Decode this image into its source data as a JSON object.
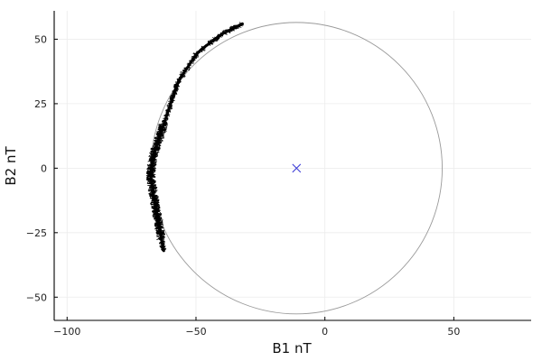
{
  "chart_data": {
    "type": "scatter",
    "title": "",
    "xlabel": "B1 nT",
    "ylabel": "B2 nT",
    "xlim": [
      -105,
      80
    ],
    "ylim": [
      -59,
      61
    ],
    "xticks": [
      -100,
      -50,
      0,
      50
    ],
    "yticks": [
      -50,
      -25,
      0,
      25,
      50
    ],
    "xtick_labels": [
      "−100",
      "−50",
      "0",
      "50"
    ],
    "ytick_labels": [
      "−50",
      "−25",
      "0",
      "25",
      "50"
    ],
    "grid": true,
    "legend": "none",
    "colors": {
      "data": "#000000",
      "circle": "#9a9a9a",
      "center_marker": "#3b3bd6",
      "grid": "#ececec",
      "axis": "#000000"
    },
    "circle": {
      "center": [
        -11,
        0
      ],
      "radius": 56.5
    },
    "center_marker": {
      "x": -11,
      "y": 0,
      "symbol": "x"
    },
    "series": [
      {
        "marker": "line",
        "points": [
          [
            -32,
            56
          ],
          [
            -34,
            55
          ],
          [
            -36,
            54
          ],
          [
            -38,
            53
          ],
          [
            -40,
            52
          ],
          [
            -42,
            50.5
          ],
          [
            -44,
            49
          ],
          [
            -46,
            47.5
          ],
          [
            -48,
            46
          ],
          [
            -50,
            44
          ],
          [
            -52,
            41
          ],
          [
            -54,
            38
          ],
          [
            -56,
            35
          ],
          [
            -57.5,
            32
          ],
          [
            -58.5,
            29
          ],
          [
            -59.5,
            26
          ],
          [
            -60.5,
            23
          ],
          [
            -61.5,
            20
          ],
          [
            -62.5,
            17
          ],
          [
            -63.5,
            14
          ],
          [
            -64.5,
            11
          ],
          [
            -65.5,
            8
          ],
          [
            -66.5,
            5
          ],
          [
            -67,
            2
          ],
          [
            -67.5,
            -1
          ],
          [
            -67.5,
            -4
          ],
          [
            -67,
            -7
          ],
          [
            -66.5,
            -10
          ],
          [
            -66,
            -13
          ],
          [
            -65.5,
            -16
          ],
          [
            -65,
            -19
          ],
          [
            -64.5,
            -21
          ],
          [
            -64,
            -24
          ],
          [
            -63.5,
            -27
          ],
          [
            -63,
            -30
          ],
          [
            -62.5,
            -32
          ]
        ]
      }
    ]
  }
}
